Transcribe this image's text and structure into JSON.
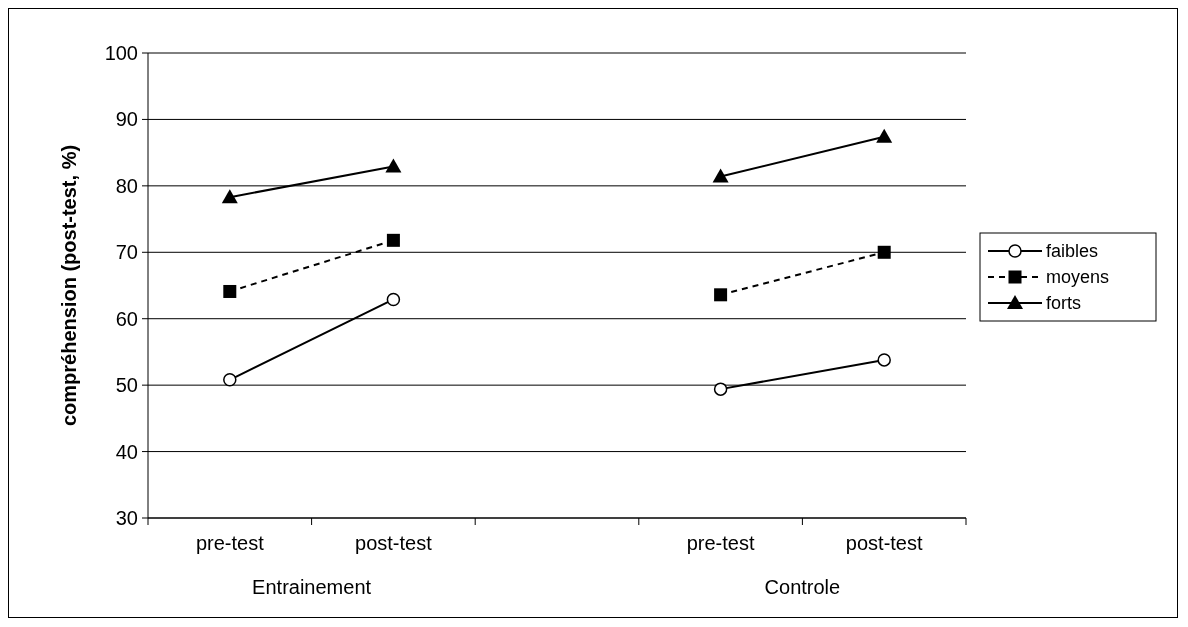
{
  "chart_data": {
    "type": "line",
    "ylabel": "compréhension (post-test, %)",
    "categories": [
      "pre-test",
      "post-test",
      null,
      "pre-test",
      "post-test"
    ],
    "annotations": [
      "Entrainement",
      "Controle"
    ],
    "series": [
      {
        "name": "faibles",
        "color": "#000000",
        "marker": "circle",
        "line_style": "solid",
        "values": [
          50.8,
          62.9,
          null,
          49.4,
          53.8
        ]
      },
      {
        "name": "moyens",
        "color": "#000000",
        "marker": "square",
        "line_style": "dashed",
        "values": [
          64.1,
          71.8,
          null,
          63.6,
          70.0
        ]
      },
      {
        "name": "forts",
        "color": "#000000",
        "marker": "triangle",
        "line_style": "solid",
        "values": [
          78.3,
          82.9,
          null,
          81.4,
          87.4
        ]
      }
    ],
    "ylim": [
      30,
      100
    ],
    "yticks": [
      30,
      40,
      50,
      60,
      70,
      80,
      90,
      100
    ],
    "grid": "y",
    "legend": "right"
  }
}
